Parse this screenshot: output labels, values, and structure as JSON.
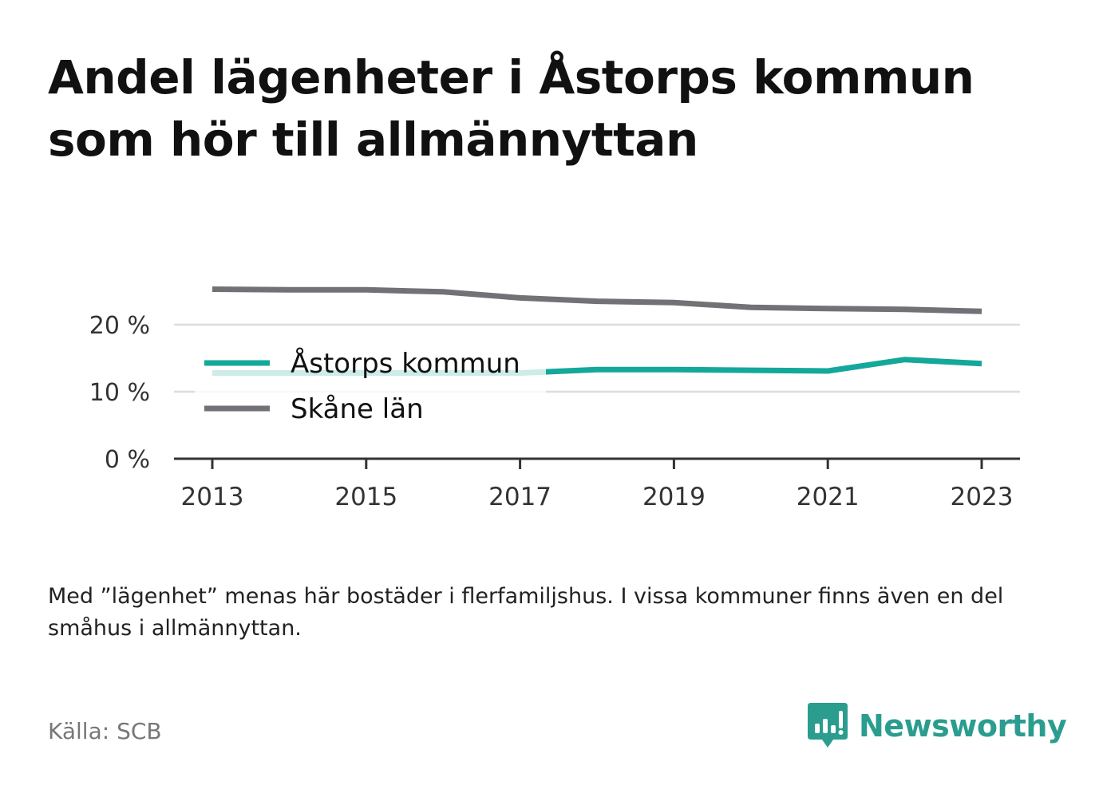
{
  "title": "Andel lägenheter i Åstorps kommun som hör till allmännyttan",
  "note": "Med ”lägenhet” menas här bostäder i flerfamiljshus. I vissa kommuner finns även en del småhus i allmännyttan.",
  "source": "Källa: SCB",
  "brand": {
    "name": "Newsworthy",
    "icon": "newsworthy-logo-icon",
    "color": "#2a9d8f"
  },
  "colors": {
    "astorp": "#14a89a",
    "skane": "#727176",
    "grid": "#dddddd",
    "axis": "#333333"
  },
  "chart_data": {
    "type": "line",
    "x": [
      2013,
      2014,
      2015,
      2016,
      2017,
      2018,
      2019,
      2020,
      2021,
      2022,
      2023
    ],
    "series": [
      {
        "name": "Åstorps kommun",
        "color": "#14a89a",
        "values": [
          12.8,
          12.8,
          12.8,
          12.8,
          12.8,
          13.3,
          13.3,
          13.2,
          13.1,
          14.8,
          14.2
        ]
      },
      {
        "name": "Skåne län",
        "color": "#727176",
        "values": [
          25.3,
          25.2,
          25.2,
          24.9,
          24.0,
          23.5,
          23.3,
          22.6,
          22.4,
          22.3,
          22.0
        ]
      }
    ],
    "xticks": [
      "2013",
      "2015",
      "2017",
      "2019",
      "2021",
      "2023"
    ],
    "yticks": [
      "0 %",
      "10 %",
      "20 %"
    ],
    "ylim": [
      0,
      27
    ],
    "grid": true,
    "legend": "left, inside plot"
  }
}
